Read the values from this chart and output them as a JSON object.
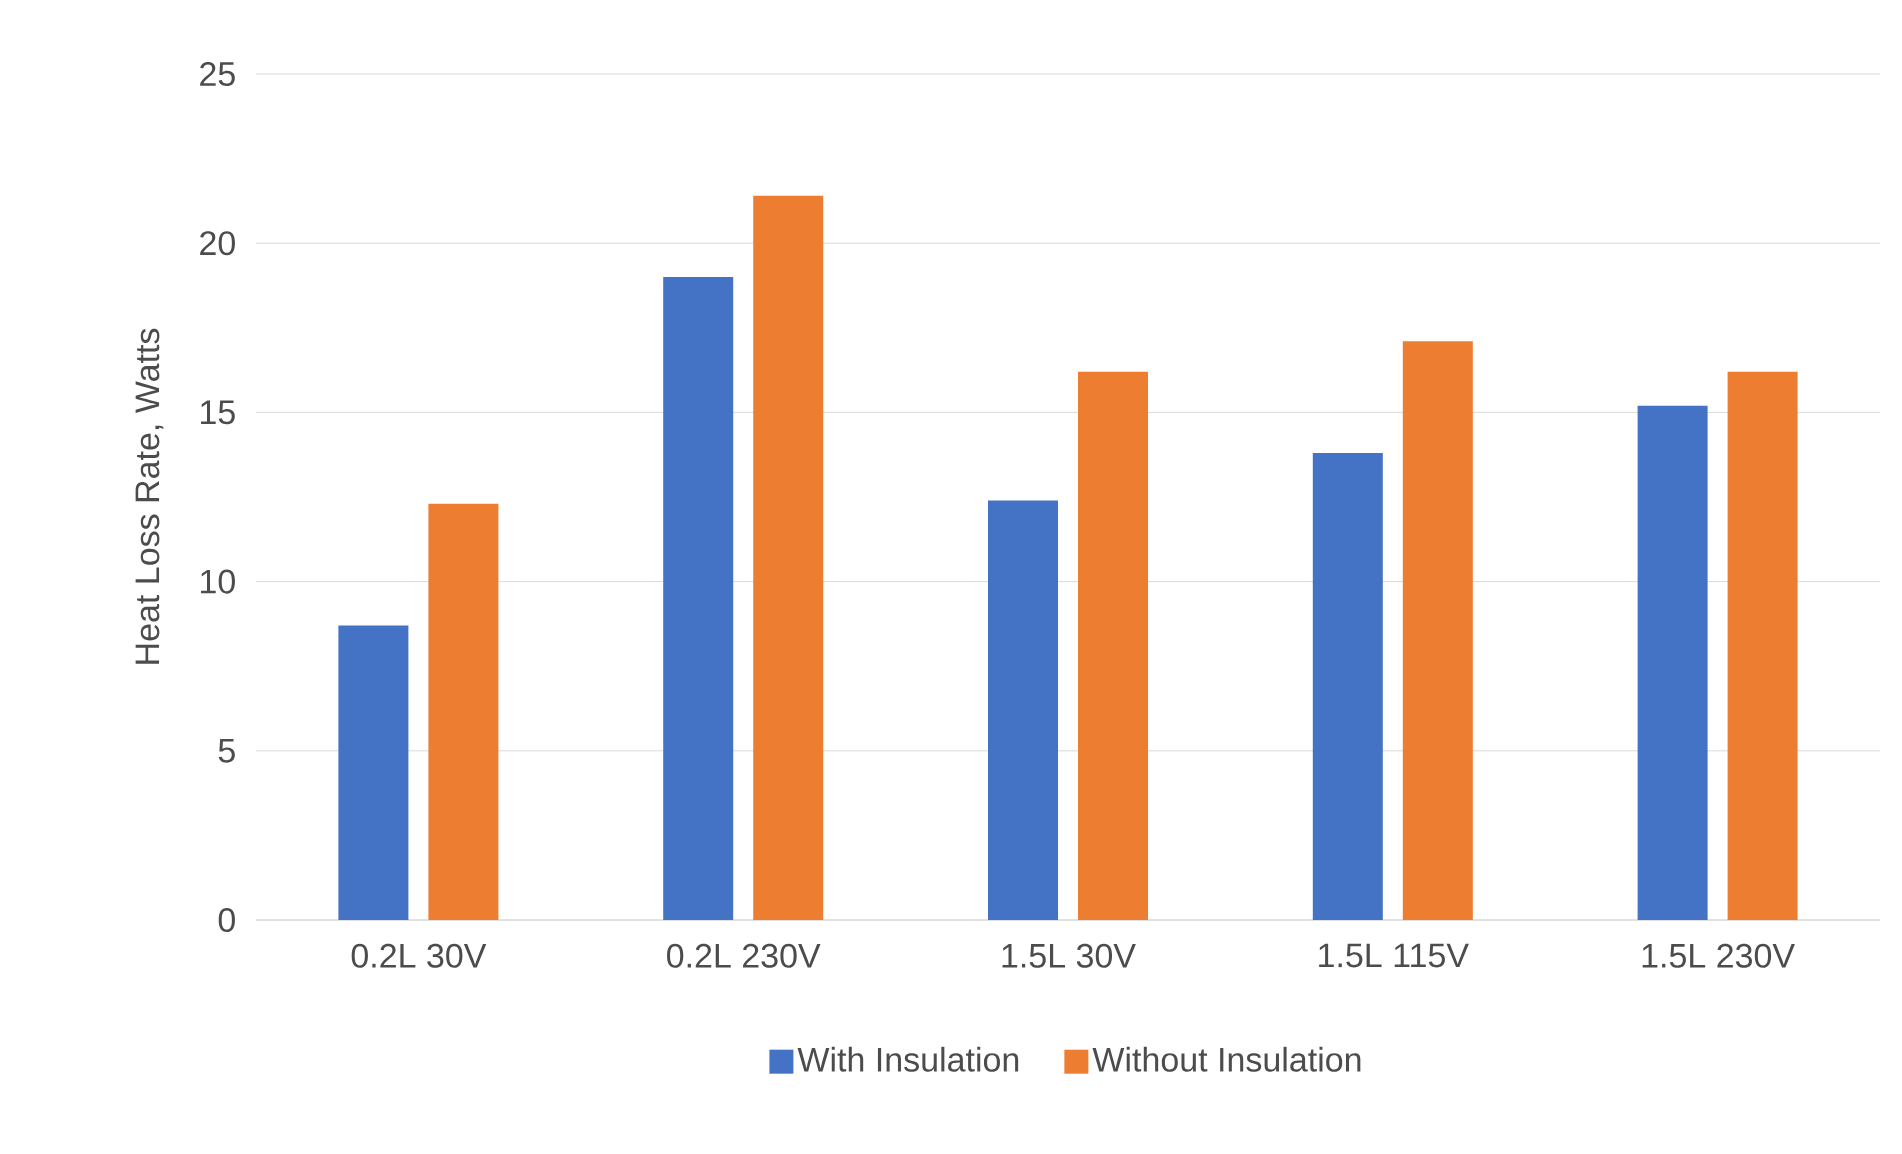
{
  "chart_data": {
    "type": "bar",
    "ylabel": "Heat Loss Rate, Watts",
    "categories": [
      "0.2L 30V",
      "0.2L 230V",
      "1.5L 30V",
      "1.5L 115V",
      "1.5L 230V"
    ],
    "series": [
      {
        "name": "With Insulation",
        "color": "#4472c4",
        "values": [
          8.7,
          19.0,
          12.4,
          13.8,
          15.2
        ]
      },
      {
        "name": "Without Insulation",
        "color": "#ed7d31",
        "values": [
          12.3,
          21.4,
          16.2,
          17.1,
          16.2
        ]
      }
    ],
    "ylim": [
      0,
      25
    ],
    "yticks": [
      0,
      5,
      10,
      15,
      20,
      25
    ],
    "grid": "y",
    "legend": "bottom"
  }
}
